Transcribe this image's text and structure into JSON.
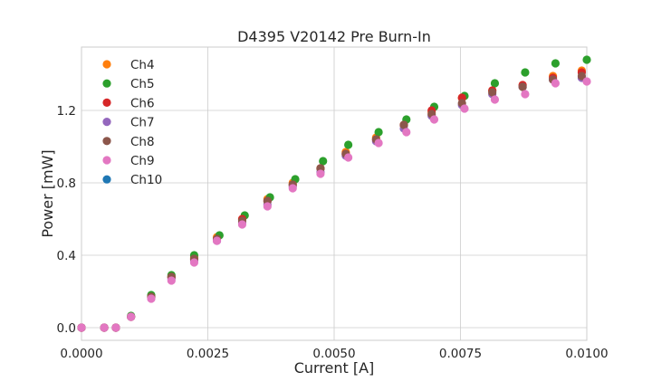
{
  "chart_data": {
    "type": "scatter",
    "title": "D4395 V20142 Pre Burn-In",
    "xlabel": "Current [A]",
    "ylabel": "Power [mW]",
    "xlim": [
      0.0,
      0.01
    ],
    "ylim": [
      -0.07,
      1.55
    ],
    "xticks": [
      0.0,
      0.0025,
      0.005,
      0.0075,
      0.01
    ],
    "xtick_labels": [
      "0.0000",
      "0.0025",
      "0.0050",
      "0.0075",
      "0.0100"
    ],
    "yticks": [
      0.0,
      0.4,
      0.8,
      1.2
    ],
    "ytick_labels": [
      "0.0",
      "0.4",
      "0.8",
      "1.2"
    ],
    "grid": true,
    "legend_position": "upper-left",
    "series": [
      {
        "name": "Ch4",
        "color": "#ff7f0e",
        "x": [
          0.0,
          0.00045,
          0.00068,
          0.00098,
          0.00138,
          0.00178,
          0.00223,
          0.00268,
          0.00318,
          0.00368,
          0.00418,
          0.00473,
          0.00523,
          0.00583,
          0.00638,
          0.00693,
          0.00753,
          0.00813,
          0.00873,
          0.00933,
          0.0099
        ],
        "y": [
          0.0,
          0.0,
          0.0,
          0.06,
          0.17,
          0.28,
          0.39,
          0.5,
          0.6,
          0.71,
          0.8,
          0.88,
          0.97,
          1.05,
          1.12,
          1.19,
          1.27,
          1.31,
          1.34,
          1.39,
          1.42
        ]
      },
      {
        "name": "Ch5",
        "color": "#2ca02c",
        "x": [
          0.0,
          0.00045,
          0.00068,
          0.00098,
          0.00138,
          0.00178,
          0.00223,
          0.00273,
          0.00323,
          0.00373,
          0.00423,
          0.00478,
          0.00528,
          0.00588,
          0.00643,
          0.00698,
          0.00758,
          0.00818,
          0.00878,
          0.00938,
          0.01
        ],
        "y": [
          0.0,
          0.0,
          0.0,
          0.065,
          0.18,
          0.29,
          0.4,
          0.51,
          0.62,
          0.72,
          0.82,
          0.92,
          1.01,
          1.08,
          1.15,
          1.22,
          1.28,
          1.35,
          1.41,
          1.46,
          1.48
        ]
      },
      {
        "name": "Ch6",
        "color": "#d62728",
        "x": [
          0.0,
          0.00045,
          0.00068,
          0.00098,
          0.00138,
          0.00178,
          0.00223,
          0.00268,
          0.00318,
          0.00368,
          0.00418,
          0.00473,
          0.00523,
          0.00583,
          0.00638,
          0.00693,
          0.00753,
          0.00813,
          0.00873,
          0.00933,
          0.0099
        ],
        "y": [
          0.0,
          0.0,
          0.0,
          0.06,
          0.17,
          0.28,
          0.38,
          0.49,
          0.6,
          0.7,
          0.79,
          0.88,
          0.96,
          1.04,
          1.12,
          1.2,
          1.27,
          1.31,
          1.34,
          1.38,
          1.41
        ]
      },
      {
        "name": "Ch7",
        "color": "#9467bd",
        "x": [
          0.0,
          0.00045,
          0.00068,
          0.00098,
          0.00138,
          0.00178,
          0.00223,
          0.00268,
          0.00318,
          0.00368,
          0.00418,
          0.00473,
          0.00523,
          0.00583,
          0.00638,
          0.00693,
          0.00753,
          0.00813,
          0.00873,
          0.00933,
          0.0099
        ],
        "y": [
          0.0,
          0.0,
          0.0,
          0.06,
          0.165,
          0.27,
          0.37,
          0.48,
          0.58,
          0.68,
          0.78,
          0.86,
          0.95,
          1.03,
          1.1,
          1.17,
          1.23,
          1.29,
          1.33,
          1.37,
          1.38
        ]
      },
      {
        "name": "Ch8",
        "color": "#8c564b",
        "x": [
          0.0,
          0.00045,
          0.00068,
          0.00098,
          0.00138,
          0.00178,
          0.00223,
          0.00268,
          0.00318,
          0.00368,
          0.00418,
          0.00473,
          0.00523,
          0.00583,
          0.00638,
          0.00693,
          0.00753,
          0.00813,
          0.00873,
          0.00933,
          0.0099
        ],
        "y": [
          0.0,
          0.0,
          0.0,
          0.06,
          0.17,
          0.28,
          0.38,
          0.49,
          0.59,
          0.7,
          0.79,
          0.88,
          0.96,
          1.04,
          1.12,
          1.18,
          1.24,
          1.3,
          1.33,
          1.37,
          1.39
        ]
      },
      {
        "name": "Ch9",
        "color": "#e377c2",
        "x": [
          0.0,
          0.00045,
          0.00068,
          0.00098,
          0.00138,
          0.00178,
          0.00223,
          0.00268,
          0.00318,
          0.00368,
          0.00418,
          0.00473,
          0.00528,
          0.00588,
          0.00643,
          0.00698,
          0.00758,
          0.00818,
          0.00878,
          0.00938,
          0.01
        ],
        "y": [
          0.0,
          0.0,
          0.0,
          0.06,
          0.16,
          0.26,
          0.36,
          0.48,
          0.57,
          0.67,
          0.77,
          0.85,
          0.94,
          1.02,
          1.08,
          1.15,
          1.21,
          1.26,
          1.29,
          1.35,
          1.36
        ]
      },
      {
        "name": "Ch10",
        "color": "#1f77b4",
        "x": [],
        "y": []
      }
    ]
  }
}
